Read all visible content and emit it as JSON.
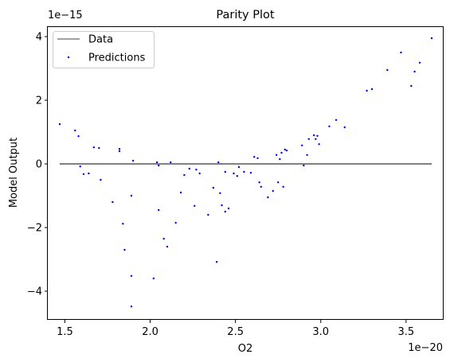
{
  "chart_data": {
    "type": "scatter",
    "title": "Parity Plot",
    "xlabel": "O2",
    "ylabel": "Model Output",
    "x_offset_text": "1e−20",
    "y_offset_text": "1e−15",
    "x_scale": 1e-20,
    "y_scale": 1e-15,
    "xlim": [
      1.4e-20,
      3.72e-20
    ],
    "ylim": [
      -4.9e-15,
      4.3e-15
    ],
    "xticks": [
      1.5e-20,
      2e-20,
      2.5e-20,
      3e-20,
      3.5e-20
    ],
    "xtick_labels": [
      "1.5",
      "2.0",
      "2.5",
      "3.0",
      "3.5"
    ],
    "yticks": [
      -4e-15,
      -2e-15,
      0,
      2e-15,
      4e-15
    ],
    "ytick_labels": [
      "−4",
      "−2",
      "0",
      "2",
      "4"
    ],
    "grid": false,
    "legend": {
      "placement": "top-left",
      "entries": [
        "Data",
        "Predictions"
      ]
    },
    "series": [
      {
        "name": "Data",
        "kind": "line",
        "color": "#808080",
        "x": [
          1.47e-20,
          3.65e-20
        ],
        "y": [
          0,
          0
        ]
      },
      {
        "name": "Predictions",
        "kind": "scatter",
        "color": "#0000ff",
        "points": [
          [
            1.47e-20,
            1.25e-15
          ],
          [
            1.56e-20,
            1.05e-15
          ],
          [
            1.58e-20,
            8.7e-16
          ],
          [
            1.59e-20,
            -8e-17
          ],
          [
            1.61e-20,
            -3.2e-16
          ],
          [
            1.64e-20,
            -3e-16
          ],
          [
            1.67e-20,
            5.2e-16
          ],
          [
            1.7e-20,
            5e-16
          ],
          [
            1.71e-20,
            -5e-16
          ],
          [
            1.78e-20,
            -1.2e-15
          ],
          [
            1.82e-20,
            4.7e-16
          ],
          [
            1.82e-20,
            4e-16
          ],
          [
            1.84e-20,
            -1.88e-15
          ],
          [
            1.85e-20,
            -2.7e-15
          ],
          [
            1.89e-20,
            -1e-15
          ],
          [
            1.89e-20,
            -3.52e-15
          ],
          [
            1.89e-20,
            -4.48e-15
          ],
          [
            1.9e-20,
            1e-16
          ],
          [
            2.02e-20,
            -3.6e-15
          ],
          [
            2.04e-20,
            5e-17
          ],
          [
            2.05e-20,
            -1.45e-15
          ],
          [
            2.05e-20,
            -5e-17
          ],
          [
            2.08e-20,
            -2.35e-15
          ],
          [
            2.1e-20,
            -2.6e-15
          ],
          [
            2.12e-20,
            5e-17
          ],
          [
            2.15e-20,
            -1.85e-15
          ],
          [
            2.18e-20,
            -9e-16
          ],
          [
            2.2e-20,
            -3.5e-16
          ],
          [
            2.23e-20,
            -1.5e-16
          ],
          [
            2.26e-20,
            -1.32e-15
          ],
          [
            2.27e-20,
            -1.8e-16
          ],
          [
            2.29e-20,
            -3e-16
          ],
          [
            2.34e-20,
            -1.6e-15
          ],
          [
            2.37e-20,
            -7.5e-16
          ],
          [
            2.39e-20,
            -3.08e-15
          ],
          [
            2.4e-20,
            5e-17
          ],
          [
            2.41e-20,
            -9.2e-16
          ],
          [
            2.42e-20,
            -1.3e-15
          ],
          [
            2.44e-20,
            -1.5e-15
          ],
          [
            2.44e-20,
            -2.5e-16
          ],
          [
            2.46e-20,
            -1.4e-15
          ],
          [
            2.49e-20,
            -3e-16
          ],
          [
            2.51e-20,
            -3.8e-16
          ],
          [
            2.52e-20,
            -1e-16
          ],
          [
            2.55e-20,
            -2.5e-16
          ],
          [
            2.59e-20,
            -2.8e-16
          ],
          [
            2.61e-20,
            2.2e-16
          ],
          [
            2.63e-20,
            1.8e-16
          ],
          [
            2.64e-20,
            -5.8e-16
          ],
          [
            2.65e-20,
            -7.2e-16
          ],
          [
            2.69e-20,
            -1.05e-15
          ],
          [
            2.72e-20,
            -8.5e-16
          ],
          [
            2.74e-20,
            2.8e-16
          ],
          [
            2.75e-20,
            -5.8e-16
          ],
          [
            2.76e-20,
            1.5e-16
          ],
          [
            2.77e-20,
            3.5e-16
          ],
          [
            2.78e-20,
            -7.2e-16
          ],
          [
            2.79e-20,
            4.5e-16
          ],
          [
            2.8e-20,
            4.2e-16
          ],
          [
            2.89e-20,
            5.8e-16
          ],
          [
            2.9e-20,
            -5e-17
          ],
          [
            2.92e-20,
            2.8e-16
          ],
          [
            2.93e-20,
            7.8e-16
          ],
          [
            2.96e-20,
            9e-16
          ],
          [
            2.97e-20,
            7.8e-16
          ],
          [
            2.98e-20,
            8.8e-16
          ],
          [
            2.99e-20,
            6.2e-16
          ],
          [
            3.05e-20,
            1.18e-15
          ],
          [
            3.09e-20,
            1.38e-15
          ],
          [
            3.14e-20,
            1.15e-15
          ],
          [
            3.27e-20,
            2.3e-15
          ],
          [
            3.3e-20,
            2.35e-15
          ],
          [
            3.39e-20,
            2.95e-15
          ],
          [
            3.47e-20,
            3.5e-15
          ],
          [
            3.53e-20,
            2.45e-15
          ],
          [
            3.55e-20,
            2.9e-15
          ],
          [
            3.58e-20,
            3.18e-15
          ],
          [
            3.65e-20,
            3.95e-15
          ]
        ]
      }
    ]
  }
}
